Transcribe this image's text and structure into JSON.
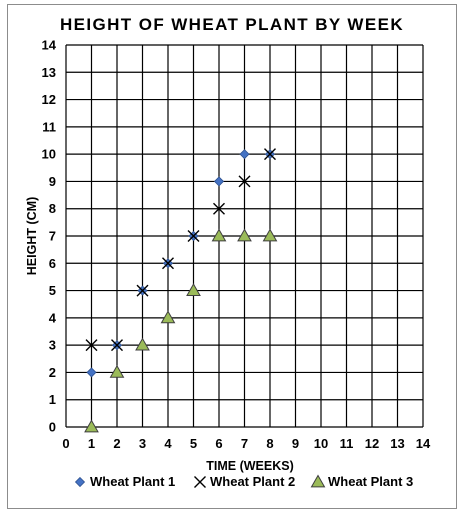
{
  "chart_data": {
    "type": "scatter",
    "title": "HEIGHT OF WHEAT PLANT BY WEEK",
    "xlabel": "TIME (WEEKS)",
    "ylabel": "HEIGHT (CM)",
    "xlim": [
      0,
      14
    ],
    "ylim": [
      0,
      14
    ],
    "x_ticks": [
      "0",
      "1",
      "2",
      "3",
      "4",
      "5",
      "6",
      "7",
      "8",
      "9",
      "10",
      "11",
      "12",
      "13",
      "14"
    ],
    "y_ticks": [
      "0",
      "1",
      "2",
      "3",
      "4",
      "5",
      "6",
      "7",
      "8",
      "9",
      "10",
      "11",
      "12",
      "13",
      "14"
    ],
    "grid": true,
    "legend_position": "bottom",
    "series": [
      {
        "name": "Wheat Plant 1",
        "marker": "diamond",
        "color": "#4472c4",
        "points": [
          [
            1,
            2
          ],
          [
            2,
            3
          ],
          [
            3,
            5
          ],
          [
            4,
            6
          ],
          [
            5,
            7
          ],
          [
            6,
            9
          ],
          [
            7,
            10
          ],
          [
            8,
            10
          ]
        ]
      },
      {
        "name": "Wheat Plant 2",
        "marker": "x",
        "color": "#000000",
        "points": [
          [
            1,
            3
          ],
          [
            2,
            3
          ],
          [
            3,
            5
          ],
          [
            4,
            6
          ],
          [
            5,
            7
          ],
          [
            6,
            8
          ],
          [
            7,
            9
          ],
          [
            8,
            10
          ]
        ]
      },
      {
        "name": "Wheat Plant 3",
        "marker": "triangle",
        "color": "#9bbb59",
        "points": [
          [
            1,
            0
          ],
          [
            2,
            2
          ],
          [
            3,
            3
          ],
          [
            4,
            4
          ],
          [
            5,
            5
          ],
          [
            6,
            7
          ],
          [
            7,
            7
          ],
          [
            8,
            7
          ]
        ]
      }
    ]
  }
}
